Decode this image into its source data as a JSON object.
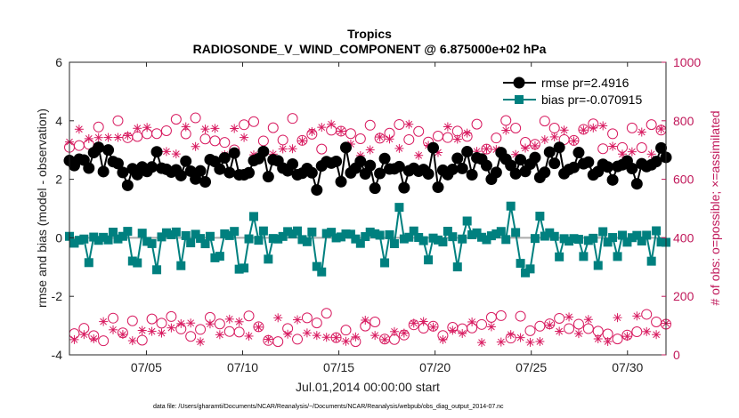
{
  "chart_data": {
    "type": "line",
    "title": "Tropics",
    "subtitle": "RADIOSONDE_V_WIND_COMPONENT @ 6.875000e+02 hPa",
    "xlabel": "Jul.01,2014 00:00:00 start",
    "ylabel": "rmse and bias (model - observation)",
    "y2label": "# of obs: o=possible; ×=assimilated",
    "ylim": [
      -4,
      6
    ],
    "y2lim": [
      0,
      1000
    ],
    "xlim": [
      1,
      32
    ],
    "x_ticks": [
      5,
      10,
      15,
      20,
      25,
      30
    ],
    "x_tick_labels": [
      "07/05",
      "07/10",
      "07/15",
      "07/20",
      "07/25",
      "07/30"
    ],
    "y_ticks": [
      -4,
      -2,
      0,
      2,
      4,
      6
    ],
    "y_tick_labels": [
      "-4",
      "-2",
      "0",
      "2",
      "4",
      "6"
    ],
    "y2_ticks": [
      0,
      200,
      400,
      600,
      800,
      1000
    ],
    "y2_tick_labels": [
      "0",
      "200",
      "400",
      "600",
      "800",
      "1000"
    ],
    "legend_position": "top-right",
    "colors": {
      "rmse": "#000000",
      "bias": "#00807f",
      "obs": "#d81b60",
      "zero_line": "#aaaaaa"
    },
    "series": [
      {
        "name": "rmse pr=2.4916",
        "marker": "circle",
        "axis": "left"
      },
      {
        "name": "bias pr=-0.070915",
        "marker": "square",
        "axis": "left"
      },
      {
        "name": "possible obs",
        "marker": "open-circle",
        "axis": "right"
      },
      {
        "name": "assimilated obs",
        "marker": "asterisk",
        "axis": "right"
      }
    ],
    "footnote": "data file: /Users/gharamti/Documents/NCAR/Reanalysis/~/Documents/NCAR/Reanalysis/webpub/obs_diag_output_2014-07.nc"
  }
}
